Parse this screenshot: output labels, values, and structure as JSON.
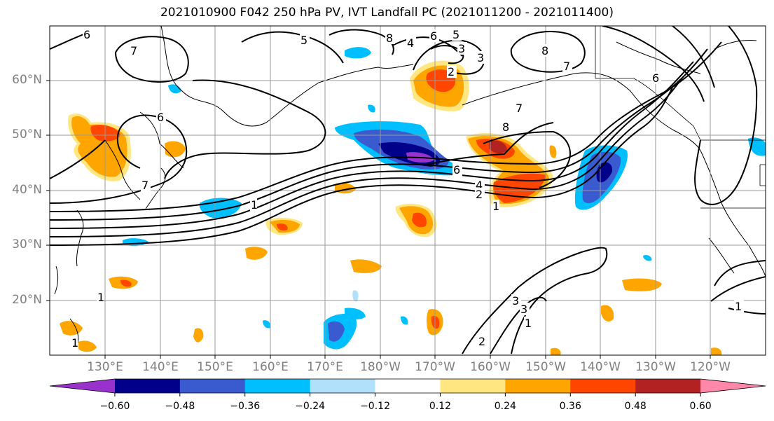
{
  "title": "2021010900 F042 250 hPa PV, IVT Landfall PC (2021011200 - 2021011400)",
  "lat_labels": [
    "60°N",
    "50°N",
    "40°N",
    "30°N",
    "20°N"
  ],
  "lon_labels": [
    "130°E",
    "140°E",
    "150°E",
    "160°E",
    "170°E",
    "180°W",
    "170°W",
    "160°W",
    "150°W",
    "140°W",
    "130°W",
    "120°W"
  ],
  "colorbar": {
    "ticks": [
      "−0.60",
      "−0.48",
      "−0.36",
      "−0.24",
      "−0.12",
      "0.12",
      "0.24",
      "0.36",
      "0.48",
      "0.60"
    ],
    "colors": [
      "#9932cc",
      "#00008b",
      "#3a5bcf",
      "#00bfff",
      "#b0e0fa",
      "#ffffff",
      "#ffe680",
      "#ffa500",
      "#ff4500",
      "#b22222",
      "#ff88aa"
    ]
  },
  "contour_labels": [
    "6",
    "7",
    "6",
    "1",
    "6",
    "5",
    "8",
    "4",
    "5",
    "3",
    "2",
    "3",
    "8",
    "7",
    "6",
    "7",
    "8",
    "6",
    "1",
    "4",
    "2",
    "1",
    "1",
    "7",
    "3",
    "3",
    "2",
    "1",
    "1"
  ]
}
